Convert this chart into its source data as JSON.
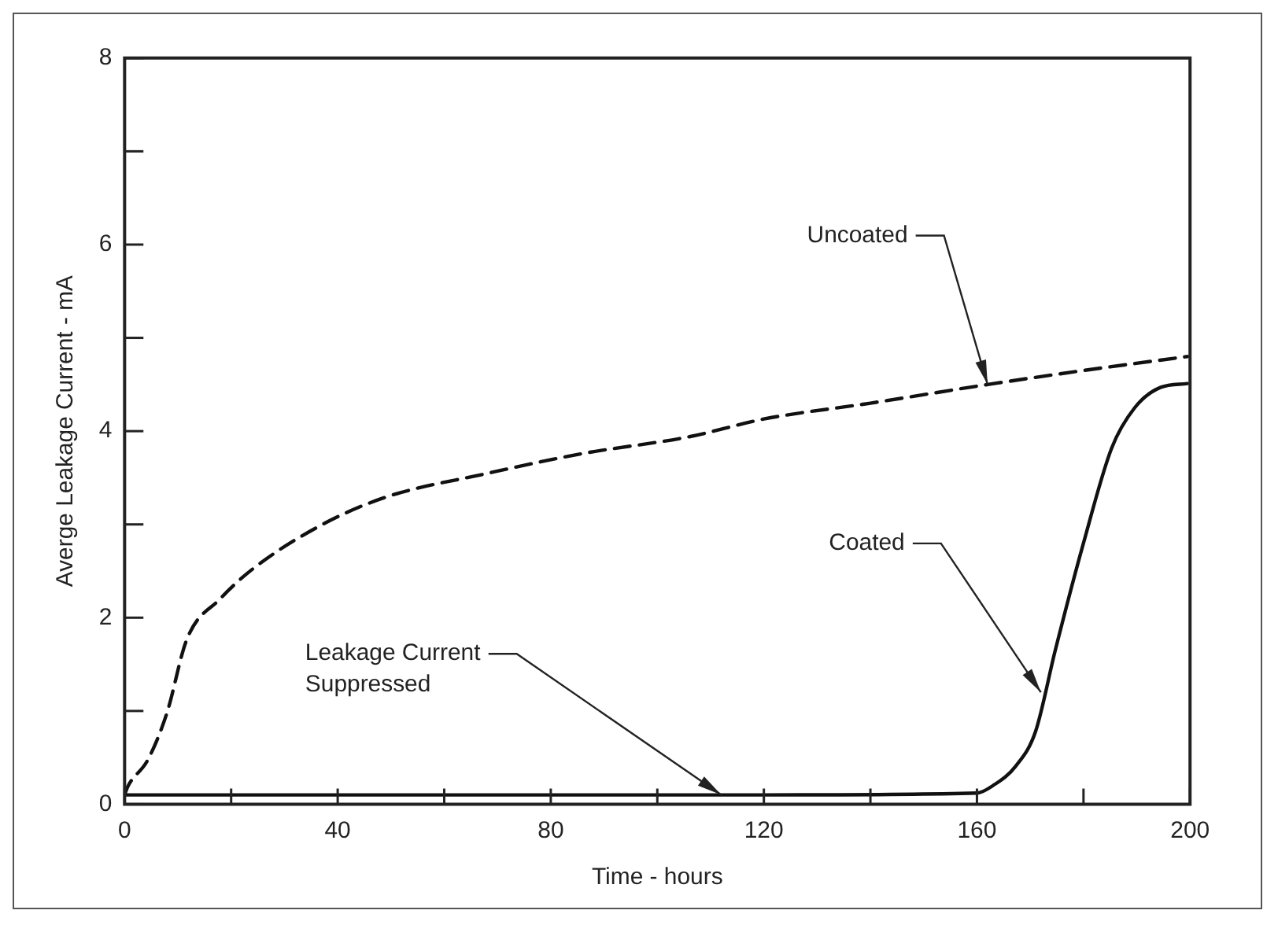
{
  "chart_data": {
    "type": "line",
    "xlabel": "Time - hours",
    "ylabel": "Averge Leakage Current - mA",
    "xlim": [
      0,
      200
    ],
    "ylim": [
      0,
      8
    ],
    "xticks": [
      0,
      {
        "value": 20,
        "label": null
      },
      40,
      {
        "value": 60,
        "label": null
      },
      80,
      {
        "value": 100,
        "label": null
      },
      120,
      {
        "value": 140,
        "label": null
      },
      160,
      {
        "value": 180,
        "label": null
      },
      200
    ],
    "yticks": [
      0,
      {
        "value": 1,
        "label": null
      },
      2,
      {
        "value": 3,
        "label": null
      },
      4,
      {
        "value": 5,
        "label": null
      },
      6,
      {
        "value": 7,
        "label": null
      },
      8
    ],
    "grid": false,
    "legend": false,
    "marker": "none",
    "series": [
      {
        "color": "#111111",
        "line_style": "dashed",
        "x": [
          0,
          0.6,
          4.3,
          7.9,
          11.7,
          17.9,
          24,
          36.5,
          48.9,
          67.5,
          86,
          106,
          120,
          140,
          162,
          180,
          199.5
        ],
        "values": [
          0.1,
          0.19,
          0.47,
          0.97,
          1.77,
          2.2,
          2.52,
          2.98,
          3.29,
          3.54,
          3.76,
          3.94,
          4.13,
          4.3,
          4.5,
          4.65,
          4.8
        ]
      },
      {
        "color": "#111111",
        "line_style": "solid",
        "x": [
          0,
          40,
          80,
          120,
          160,
          163,
          167.3,
          171,
          174.7,
          180,
          185.3,
          189.6,
          194.5,
          199.5
        ],
        "values": [
          0.1,
          0.1,
          0.1,
          0.1,
          0.12,
          0.2,
          0.41,
          0.78,
          1.65,
          2.8,
          3.82,
          4.25,
          4.47,
          4.51
        ]
      }
    ],
    "annotations": [
      {
        "text": "Uncoated",
        "x": 162,
        "y": 4.5
      },
      {
        "text": "Coated",
        "x": 172,
        "y": 1.2
      },
      {
        "text": "Leakage Current Suppressed",
        "x": 112,
        "y": 0.1
      }
    ]
  }
}
